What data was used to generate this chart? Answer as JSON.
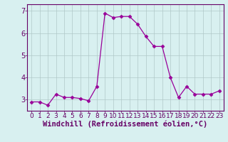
{
  "x": [
    0,
    1,
    2,
    3,
    4,
    5,
    6,
    7,
    8,
    9,
    10,
    11,
    12,
    13,
    14,
    15,
    16,
    17,
    18,
    19,
    20,
    21,
    22,
    23
  ],
  "y": [
    2.9,
    2.9,
    2.75,
    3.25,
    3.1,
    3.1,
    3.05,
    2.95,
    3.6,
    6.9,
    6.7,
    6.75,
    6.75,
    6.4,
    5.85,
    5.4,
    5.4,
    4.0,
    3.1,
    3.6,
    3.25,
    3.25,
    3.25,
    3.4
  ],
  "line_color": "#990099",
  "marker": "D",
  "marker_size": 2.5,
  "bg_color": "#d8f0f0",
  "grid_color": "#b0c8c8",
  "xlabel": "Windchill (Refroidissement éolien,°C)",
  "xlabel_color": "#660066",
  "xlabel_fontsize": 7.5,
  "tick_color": "#660066",
  "tick_fontsize": 6.5,
  "ylim": [
    2.5,
    7.3
  ],
  "yticks": [
    3,
    4,
    5,
    6,
    7
  ],
  "xticks": [
    0,
    1,
    2,
    3,
    4,
    5,
    6,
    7,
    8,
    9,
    10,
    11,
    12,
    13,
    14,
    15,
    16,
    17,
    18,
    19,
    20,
    21,
    22,
    23
  ]
}
